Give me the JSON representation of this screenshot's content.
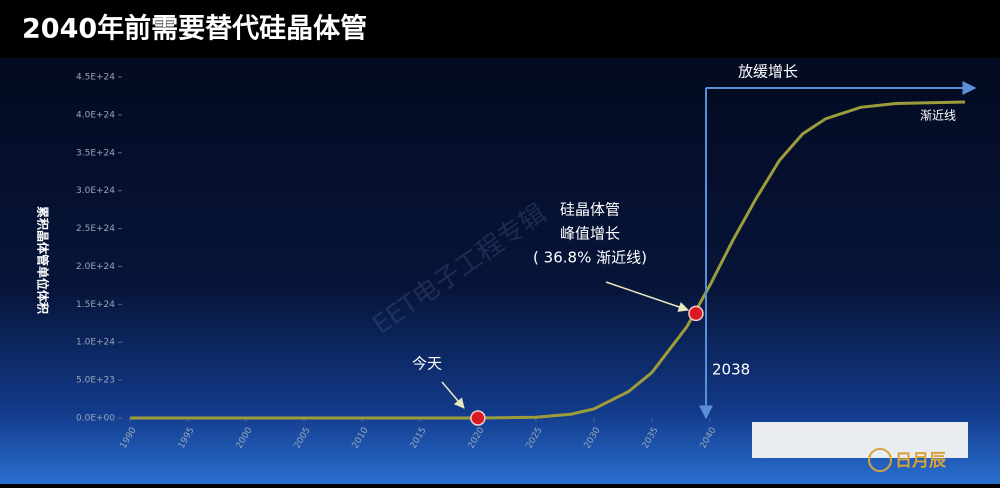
{
  "chart_data": {
    "type": "line",
    "title": "2040年前需要替代硅晶体管",
    "y_label": "累积晶体管单位体积",
    "x": [
      1990,
      2000,
      2010,
      2020,
      2025,
      2028,
      2030,
      2033,
      2035,
      2038,
      2040,
      2042,
      2044,
      2046,
      2048,
      2050,
      2053,
      2056,
      2062
    ],
    "values": [
      0,
      0,
      0,
      0,
      1e+22,
      5e+22,
      1.2e+23,
      3.5e+23,
      6e+23,
      1.2e+24,
      1.75e+24,
      2.35e+24,
      2.9e+24,
      3.4e+24,
      3.75e+24,
      3.95e+24,
      4.1e+24,
      4.15e+24,
      4.17e+24
    ],
    "color": "#9c9c3c",
    "highlight_points": {
      "x": [
        2020,
        2038.8
      ],
      "values": [
        0,
        1.38e+24
      ],
      "color": "#d91a22"
    },
    "xlim": [
      1990,
      2062
    ],
    "xticks": [
      1990,
      1995,
      2000,
      2005,
      2010,
      2015,
      2020,
      2025,
      2030,
      2035,
      2040
    ],
    "ylim": [
      0,
      4.5e+24
    ],
    "yticks": [
      {
        "value": 0,
        "label": "0.0E+00"
      },
      {
        "value": 5e+23,
        "label": "5.0E+23"
      },
      {
        "value": 1e+24,
        "label": "1.0E+24"
      },
      {
        "value": 1.5e+24,
        "label": "1.5E+24"
      },
      {
        "value": 2e+24,
        "label": "2.0E+24"
      },
      {
        "value": 2.5e+24,
        "label": "2.5E+24"
      },
      {
        "value": 3e+24,
        "label": "3.0E+24"
      },
      {
        "value": 3.5e+24,
        "label": "3.5E+24"
      },
      {
        "value": 4e+24,
        "label": "4.0E+24"
      },
      {
        "value": 4.5e+24,
        "label": "4.5E+24"
      }
    ],
    "annotations": {
      "today": "今天",
      "peak_line1": "硅晶体管",
      "peak_line2": "峰值增长",
      "peak_line3": "( 36.8% 渐近线)",
      "year": "2038",
      "slowdown": "放缓增长",
      "asymptote": "渐近线",
      "watermark": "EET电子工程专辑",
      "logo": "日月辰"
    }
  }
}
